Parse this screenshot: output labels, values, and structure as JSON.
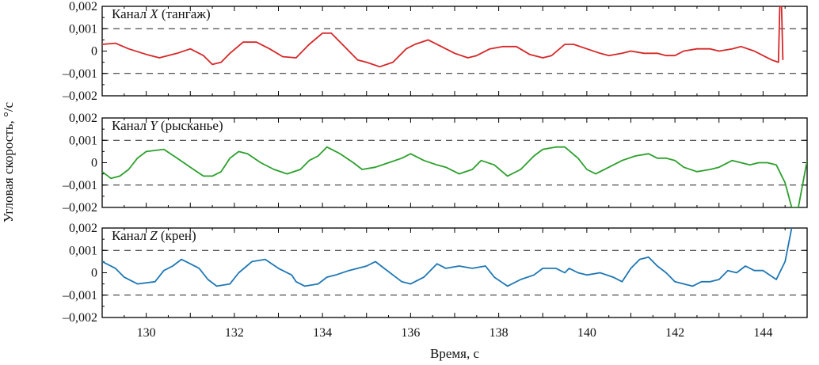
{
  "chart_data": {
    "type": "line",
    "xlabel": "Время, с",
    "ylabel": "Угловая скорость, °/с",
    "xlim": [
      129,
      145
    ],
    "xticks": [
      130,
      132,
      134,
      136,
      138,
      140,
      142,
      144
    ],
    "ylim": [
      -0.002,
      0.002
    ],
    "ytick_labels": [
      "0,002",
      "0,001",
      "0",
      "–0,001",
      "–0,002"
    ],
    "ytick_values": [
      0.002,
      0.001,
      0,
      -0.001,
      -0.002
    ],
    "reference_lines": [
      0.001,
      -0.001
    ],
    "panels": [
      {
        "title_prefix": "Канал ",
        "title_var": "X",
        "title_suffix": " (тангаж)",
        "color": "#d62728",
        "points": [
          [
            129,
            0.0003
          ],
          [
            129.3,
            0.00035
          ],
          [
            129.6,
            0.0001
          ],
          [
            130,
            -0.00015
          ],
          [
            130.3,
            -0.0003
          ],
          [
            130.7,
            -0.0001
          ],
          [
            131,
            0.0001
          ],
          [
            131.3,
            -0.0002
          ],
          [
            131.5,
            -0.0006
          ],
          [
            131.7,
            -0.0005
          ],
          [
            131.9,
            -0.0001
          ],
          [
            132.2,
            0.0004
          ],
          [
            132.5,
            0.0004
          ],
          [
            132.8,
            0.0001
          ],
          [
            133.1,
            -0.00025
          ],
          [
            133.4,
            -0.0003
          ],
          [
            133.7,
            0.0003
          ],
          [
            134,
            0.0008
          ],
          [
            134.2,
            0.0008
          ],
          [
            134.5,
            0.0002
          ],
          [
            134.8,
            -0.0004
          ],
          [
            135,
            -0.0005
          ],
          [
            135.3,
            -0.0007
          ],
          [
            135.6,
            -0.0005
          ],
          [
            135.9,
            0.0001
          ],
          [
            136.1,
            0.0003
          ],
          [
            136.4,
            0.0005
          ],
          [
            136.7,
            0.0002
          ],
          [
            137,
            -0.0001
          ],
          [
            137.3,
            -0.0003
          ],
          [
            137.5,
            -0.0002
          ],
          [
            137.8,
            0.0001
          ],
          [
            138.1,
            0.0002
          ],
          [
            138.4,
            0.0002
          ],
          [
            138.7,
            -0.00015
          ],
          [
            139,
            -0.0003
          ],
          [
            139.2,
            -0.0002
          ],
          [
            139.5,
            0.0003
          ],
          [
            139.7,
            0.0003
          ],
          [
            140,
            0.0001
          ],
          [
            140.3,
            -0.0001
          ],
          [
            140.5,
            -0.0002
          ],
          [
            140.8,
            -0.0001
          ],
          [
            141,
            0
          ],
          [
            141.3,
            -0.0001
          ],
          [
            141.6,
            -0.0001
          ],
          [
            141.8,
            -0.0002
          ],
          [
            142,
            -0.0002
          ],
          [
            142.2,
            0
          ],
          [
            142.5,
            0.0001
          ],
          [
            142.8,
            0.0001
          ],
          [
            143,
            0
          ],
          [
            143.3,
            0.0001
          ],
          [
            143.5,
            0.0002
          ],
          [
            143.8,
            0
          ],
          [
            144,
            -0.0002
          ],
          [
            144.2,
            -0.0004
          ],
          [
            144.35,
            -0.0005
          ],
          [
            144.38,
            0.002
          ],
          [
            144.42,
            0.002
          ],
          [
            144.45,
            -0.0004
          ]
        ]
      },
      {
        "title_prefix": "Канал ",
        "title_var": "Y",
        "title_suffix": " (рысканье)",
        "color": "#2ca02c",
        "points": [
          [
            129,
            -0.0004
          ],
          [
            129.2,
            -0.0007
          ],
          [
            129.4,
            -0.0006
          ],
          [
            129.6,
            -0.0003
          ],
          [
            129.8,
            0.0002
          ],
          [
            130,
            0.0005
          ],
          [
            130.4,
            0.0006
          ],
          [
            130.7,
            0.0002
          ],
          [
            131,
            -0.0002
          ],
          [
            131.3,
            -0.0006
          ],
          [
            131.5,
            -0.0006
          ],
          [
            131.7,
            -0.0004
          ],
          [
            131.9,
            0.0002
          ],
          [
            132.1,
            0.0005
          ],
          [
            132.3,
            0.0004
          ],
          [
            132.6,
            0
          ],
          [
            132.9,
            -0.0003
          ],
          [
            133.2,
            -0.0005
          ],
          [
            133.5,
            -0.0003
          ],
          [
            133.7,
            0.0001
          ],
          [
            133.9,
            0.0003
          ],
          [
            134.1,
            0.0007
          ],
          [
            134.4,
            0.0004
          ],
          [
            134.7,
            0
          ],
          [
            134.9,
            -0.0003
          ],
          [
            135.2,
            -0.0002
          ],
          [
            135.5,
            0
          ],
          [
            135.8,
            0.0002
          ],
          [
            136,
            0.0004
          ],
          [
            136.3,
            0.0001
          ],
          [
            136.6,
            -0.0001
          ],
          [
            136.8,
            -0.0002
          ],
          [
            137.1,
            -0.0005
          ],
          [
            137.4,
            -0.0003
          ],
          [
            137.6,
            0.0001
          ],
          [
            137.9,
            -0.0001
          ],
          [
            138.2,
            -0.0006
          ],
          [
            138.5,
            -0.0003
          ],
          [
            138.8,
            0.0003
          ],
          [
            139,
            0.0006
          ],
          [
            139.3,
            0.0007
          ],
          [
            139.5,
            0.0007
          ],
          [
            139.8,
            0.0002
          ],
          [
            140,
            -0.0003
          ],
          [
            140.2,
            -0.0005
          ],
          [
            140.5,
            -0.0002
          ],
          [
            140.8,
            0.0001
          ],
          [
            141.1,
            0.0003
          ],
          [
            141.4,
            0.0004
          ],
          [
            141.6,
            0.0002
          ],
          [
            141.8,
            0.0002
          ],
          [
            142,
            0.0001
          ],
          [
            142.2,
            -0.0002
          ],
          [
            142.5,
            -0.0004
          ],
          [
            142.8,
            -0.0003
          ],
          [
            143,
            -0.0002
          ],
          [
            143.3,
            0.0001
          ],
          [
            143.5,
            0
          ],
          [
            143.7,
            -0.0001
          ],
          [
            143.9,
            0
          ],
          [
            144.1,
            0
          ],
          [
            144.3,
            -0.0001
          ],
          [
            144.5,
            -0.0009
          ],
          [
            144.65,
            -0.002
          ],
          [
            144.8,
            -0.002
          ],
          [
            145,
            0.0001
          ]
        ]
      },
      {
        "title_prefix": "Канал ",
        "title_var": "Z",
        "title_suffix": " (крен)",
        "color": "#1f77b4",
        "points": [
          [
            129,
            0.0005
          ],
          [
            129.3,
            0.0002
          ],
          [
            129.5,
            -0.0002
          ],
          [
            129.8,
            -0.0005
          ],
          [
            130.2,
            -0.0004
          ],
          [
            130.4,
            0.0001
          ],
          [
            130.6,
            0.0003
          ],
          [
            130.8,
            0.0006
          ],
          [
            131,
            0.0004
          ],
          [
            131.2,
            0.0002
          ],
          [
            131.4,
            -0.0003
          ],
          [
            131.6,
            -0.0006
          ],
          [
            131.9,
            -0.0005
          ],
          [
            132.1,
            0
          ],
          [
            132.4,
            0.0005
          ],
          [
            132.7,
            0.0006
          ],
          [
            133,
            0.0002
          ],
          [
            133.3,
            -0.0001
          ],
          [
            133.4,
            -0.0004
          ],
          [
            133.6,
            -0.0006
          ],
          [
            133.9,
            -0.0005
          ],
          [
            134.1,
            -0.0002
          ],
          [
            134.3,
            -0.0001
          ],
          [
            134.6,
            0.0001
          ],
          [
            134.8,
            0.0002
          ],
          [
            135,
            0.0003
          ],
          [
            135.2,
            0.0005
          ],
          [
            135.4,
            0.0002
          ],
          [
            135.6,
            -0.0001
          ],
          [
            135.8,
            -0.0004
          ],
          [
            136,
            -0.0005
          ],
          [
            136.3,
            -0.0002
          ],
          [
            136.6,
            0.0004
          ],
          [
            136.8,
            0.0002
          ],
          [
            137.1,
            0.0003
          ],
          [
            137.4,
            0.0002
          ],
          [
            137.7,
            0.0003
          ],
          [
            137.9,
            -0.0002
          ],
          [
            138.2,
            -0.0006
          ],
          [
            138.5,
            -0.0003
          ],
          [
            138.8,
            -0.0001
          ],
          [
            139,
            0.0002
          ],
          [
            139.3,
            0.0002
          ],
          [
            139.5,
            0
          ],
          [
            139.6,
            0.0002
          ],
          [
            139.8,
            0
          ],
          [
            140,
            -0.0001
          ],
          [
            140.3,
            0
          ],
          [
            140.6,
            -0.0002
          ],
          [
            140.8,
            -0.0004
          ],
          [
            141,
            0.0002
          ],
          [
            141.2,
            0.0006
          ],
          [
            141.4,
            0.0007
          ],
          [
            141.6,
            0.0003
          ],
          [
            141.8,
            0
          ],
          [
            142,
            -0.0004
          ],
          [
            142.2,
            -0.0005
          ],
          [
            142.4,
            -0.0006
          ],
          [
            142.6,
            -0.0004
          ],
          [
            142.8,
            -0.0004
          ],
          [
            143,
            -0.0003
          ],
          [
            143.2,
            0.0001
          ],
          [
            143.4,
            0
          ],
          [
            143.6,
            0.0003
          ],
          [
            143.8,
            0.0001
          ],
          [
            144,
            0.0001
          ],
          [
            144.3,
            -0.0003
          ],
          [
            144.5,
            0.0005
          ],
          [
            144.65,
            0.002
          ]
        ]
      }
    ]
  }
}
